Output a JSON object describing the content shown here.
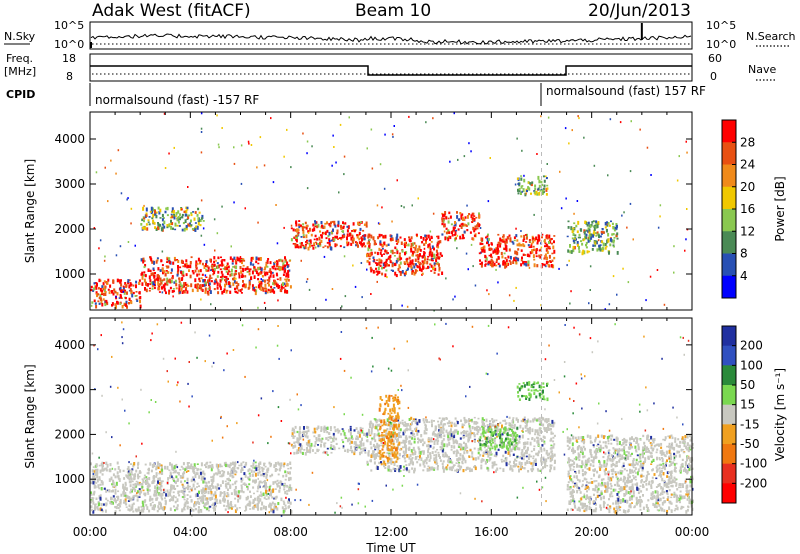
{
  "header": {
    "station": "Adak West (fitACF)",
    "beam": "Beam 10",
    "date": "20/Jun/2013"
  },
  "summary": {
    "nsky_label": "N.Sky",
    "nsky_ticks": [
      "10^5",
      "10^0"
    ],
    "nsearch_label": "N.Search",
    "nsearch_ticks": [
      "10^5",
      "10^0"
    ],
    "freq_label": "Freq.",
    "freq_unit": "[MHz]",
    "freq_ticks": [
      "18",
      "8"
    ],
    "nave_label": "Nave",
    "nave_ticks": [
      "60",
      "0"
    ],
    "cpid_label": "CPID",
    "cpid_segments": [
      "normalsound (fast) -157 RF",
      "normalsound (fast) 157 RF"
    ]
  },
  "chart_data": [
    {
      "type": "heatmap",
      "name": "power",
      "xlabel": "",
      "ylabel": "Slant Range [km]",
      "ylim": [
        200,
        4600
      ],
      "yticks": [
        "1000",
        "2000",
        "3000",
        "4000"
      ],
      "xlim_hours": [
        0,
        24
      ],
      "xticks": [
        "00:00",
        "04:00",
        "08:00",
        "12:00",
        "16:00",
        "20:00",
        "00:00"
      ],
      "colorbar": {
        "title": "Power [dB]",
        "ticks": [
          "4",
          "8",
          "12",
          "16",
          "20",
          "24",
          "28"
        ],
        "colors": [
          "#0000ff",
          "#2850b4",
          "#4a8a55",
          "#8ac850",
          "#f0c800",
          "#f08a1a",
          "#e85012",
          "#ff0000"
        ]
      },
      "echo_bands": [
        {
          "from": 0.0,
          "to": 2.0,
          "range_low": 300,
          "range_high": 900,
          "level": "high"
        },
        {
          "from": 2.0,
          "to": 8.0,
          "range_low": 600,
          "range_high": 1400,
          "level": "high"
        },
        {
          "from": 8.0,
          "to": 11.0,
          "range_low": 1600,
          "range_high": 2200,
          "level": "high"
        },
        {
          "from": 11.0,
          "to": 14.0,
          "range_low": 1000,
          "range_high": 1900,
          "level": "high"
        },
        {
          "from": 14.0,
          "to": 15.5,
          "range_low": 1800,
          "range_high": 2400,
          "level": "high"
        },
        {
          "from": 15.5,
          "to": 18.5,
          "range_low": 1200,
          "range_high": 1900,
          "level": "high"
        },
        {
          "from": 19.0,
          "to": 21.0,
          "range_low": 1500,
          "range_high": 2200,
          "level": "medium"
        },
        {
          "from": 2.0,
          "to": 4.5,
          "range_low": 2000,
          "range_high": 2500,
          "level": "medium"
        },
        {
          "from": 17.0,
          "to": 18.2,
          "range_low": 2800,
          "range_high": 3200,
          "level": "medium"
        }
      ]
    },
    {
      "type": "heatmap",
      "name": "velocity",
      "xlabel": "Time UT",
      "ylabel": "Slant Range [km]",
      "ylim": [
        200,
        4600
      ],
      "yticks": [
        "1000",
        "2000",
        "3000",
        "4000"
      ],
      "xlim_hours": [
        0,
        24
      ],
      "xticks": [
        "00:00",
        "04:00",
        "08:00",
        "12:00",
        "16:00",
        "20:00",
        "00:00"
      ],
      "colorbar": {
        "title": "Velocity [m s⁻¹]",
        "ticks": [
          "200",
          "100",
          "50",
          "15",
          "-15",
          "-50",
          "-100",
          "-200"
        ],
        "colors": [
          "#2030a0",
          "#3050c0",
          "#2a8a3a",
          "#7ad850",
          "#c8c8c0",
          "#f0a020",
          "#f07810",
          "#e83020",
          "#ff0000"
        ]
      },
      "echo_bands": [
        {
          "from": 0.0,
          "to": 8.0,
          "range_low": 300,
          "range_high": 1400,
          "level": "ground"
        },
        {
          "from": 8.0,
          "to": 11.0,
          "range_low": 1600,
          "range_high": 2200,
          "level": "ground"
        },
        {
          "from": 11.0,
          "to": 18.5,
          "range_low": 1200,
          "range_high": 2400,
          "level": "ground"
        },
        {
          "from": 19.0,
          "to": 24.0,
          "range_low": 300,
          "range_high": 2000,
          "level": "ground"
        },
        {
          "from": 11.5,
          "to": 12.3,
          "range_low": 1400,
          "range_high": 2900,
          "level": "negative"
        },
        {
          "from": 15.5,
          "to": 17.0,
          "range_low": 1700,
          "range_high": 2200,
          "level": "positive"
        },
        {
          "from": 17.0,
          "to": 18.2,
          "range_low": 2800,
          "range_high": 3200,
          "level": "positive"
        }
      ]
    }
  ]
}
